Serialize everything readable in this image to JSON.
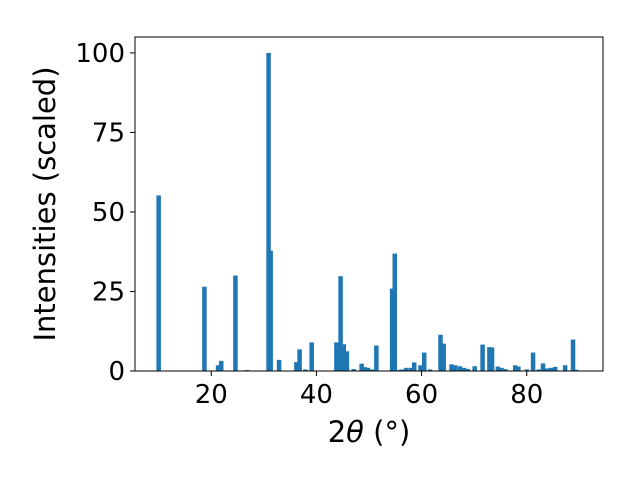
{
  "chart_data": {
    "type": "bar",
    "title": "",
    "xlabel_prefix": "2",
    "xlabel_theta": "θ",
    "xlabel_unit": " (°)",
    "ylabel": "Intensities (scaled)",
    "xlim": [
      5.5,
      94.5
    ],
    "ylim": [
      0,
      105
    ],
    "xticks": [
      20,
      40,
      60,
      80
    ],
    "yticks": [
      0,
      25,
      50,
      75,
      100
    ],
    "grid": false,
    "bar_color": "#1f77b4",
    "x": [
      10.0,
      18.7,
      21.3,
      21.9,
      24.6,
      26.8,
      30.9,
      31.3,
      32.9,
      36.2,
      36.8,
      37.9,
      39.1,
      43.8,
      44.6,
      45.2,
      45.8,
      47.1,
      48.6,
      49.2,
      49.8,
      50.6,
      51.4,
      54.4,
      54.9,
      55.9,
      56.4,
      57.1,
      58.0,
      58.6,
      59.8,
      60.5,
      61.6,
      63.6,
      64.2,
      65.7,
      66.4,
      67.3,
      68.1,
      68.8,
      70.1,
      71.6,
      72.9,
      73.4,
      74.5,
      75.2,
      75.9,
      77.8,
      78.4,
      80.0,
      81.2,
      82.3,
      83.1,
      83.9,
      84.6,
      85.4,
      87.3,
      88.8,
      89.4
    ],
    "values": [
      55.2,
      26.5,
      1.8,
      3.2,
      30.0,
      0.3,
      100.0,
      37.8,
      3.5,
      2.8,
      6.8,
      0.5,
      9.0,
      9.0,
      29.8,
      8.4,
      6.2,
      0.6,
      2.3,
      1.2,
      1.0,
      0.5,
      8.0,
      25.9,
      36.9,
      0.4,
      0.5,
      1.0,
      1.0,
      2.7,
      1.8,
      5.8,
      0.5,
      11.4,
      8.6,
      2.1,
      1.8,
      1.5,
      1.0,
      0.6,
      1.5,
      8.3,
      7.5,
      7.4,
      1.4,
      1.0,
      0.6,
      1.8,
      1.4,
      0.5,
      5.8,
      0.5,
      2.4,
      0.8,
      1.0,
      1.3,
      1.8,
      9.9,
      0.4
    ]
  }
}
